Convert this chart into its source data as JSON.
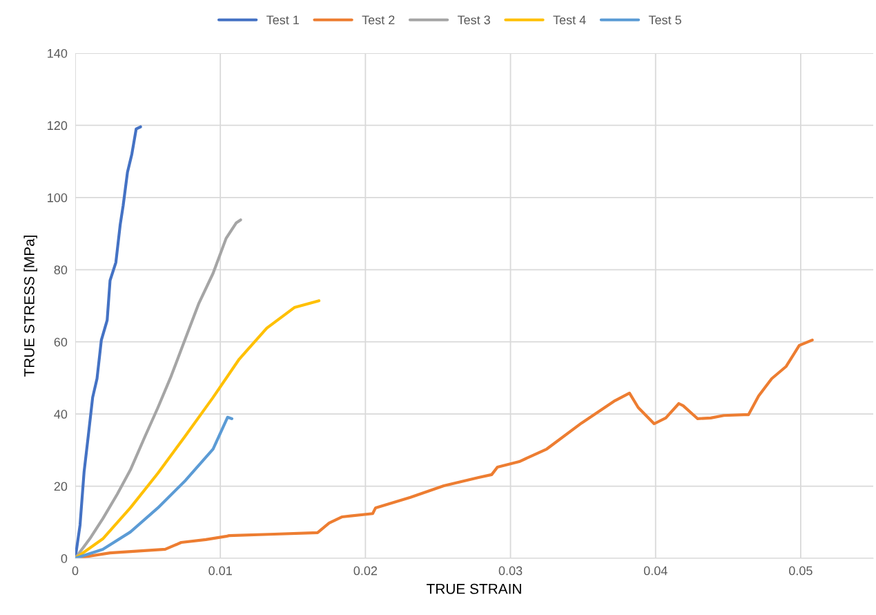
{
  "chart_data": {
    "type": "line",
    "xlabel": "TRUE STRAIN",
    "ylabel": "TRUE STRESS [MPa]",
    "xlim": [
      0,
      0.055
    ],
    "xticks": [
      0,
      0.01,
      0.02,
      0.03,
      0.04,
      0.05
    ],
    "ylim": [
      0,
      140
    ],
    "yticks": [
      0,
      20,
      40,
      60,
      80,
      100,
      120,
      140
    ],
    "grid": true,
    "legend": "top",
    "marker": "none",
    "line_style": "solid",
    "series": [
      {
        "name": "Test 1",
        "color": "#4472c4",
        "x": [
          0,
          0.00033,
          0.00061,
          0.0009,
          0.0012,
          0.0015,
          0.0018,
          0.0022,
          0.0024,
          0.0028,
          0.0031,
          0.0033,
          0.0036,
          0.0039,
          0.0042,
          0.0045
        ],
        "values": [
          0,
          9.2,
          24,
          34,
          44.6,
          49.8,
          60.5,
          66,
          77,
          82,
          92.5,
          97.7,
          107,
          112,
          119,
          119.6
        ]
      },
      {
        "name": "Test 2",
        "color": "#ed7d31",
        "x": [
          0,
          0.0024,
          0.0062,
          0.0073,
          0.009,
          0.0104,
          0.0106,
          0.0137,
          0.0167,
          0.0175,
          0.0184,
          0.0205,
          0.0207,
          0.0231,
          0.0254,
          0.0278,
          0.0287,
          0.0291,
          0.0306,
          0.0325,
          0.0349,
          0.0372,
          0.0382,
          0.0388,
          0.0399,
          0.0407,
          0.0416,
          0.0419,
          0.0429,
          0.0438,
          0.0447,
          0.0461,
          0.0464,
          0.0471,
          0.048,
          0.049,
          0.0499,
          0.0508
        ],
        "values": [
          0,
          1.5,
          2.5,
          4.4,
          5.2,
          6.1,
          6.3,
          6.7,
          7.1,
          9.8,
          11.5,
          12.4,
          14,
          16.9,
          20.1,
          22.4,
          23.2,
          25.3,
          26.8,
          30.3,
          37.5,
          43.7,
          45.8,
          41.8,
          37.3,
          38.9,
          42.9,
          42.3,
          38.7,
          38.9,
          39.6,
          39.8,
          39.8,
          45,
          49.8,
          53.2,
          59,
          60.5
        ]
      },
      {
        "name": "Test 3",
        "color": "#a5a5a5",
        "x": [
          0,
          0.001,
          0.0019,
          0.0029,
          0.0038,
          0.0048,
          0.0057,
          0.0066,
          0.0076,
          0.0085,
          0.0095,
          0.0104,
          0.0111,
          0.0114
        ],
        "values": [
          0,
          5.4,
          11,
          17.8,
          24.5,
          33.7,
          41.8,
          50.4,
          61,
          70.5,
          79,
          88.7,
          93,
          93.8
        ]
      },
      {
        "name": "Test 4",
        "color": "#ffc000",
        "x": [
          0,
          0.0019,
          0.0038,
          0.0057,
          0.0076,
          0.0095,
          0.0113,
          0.0132,
          0.0151,
          0.0168
        ],
        "values": [
          0,
          5.4,
          14,
          23.6,
          34,
          44.6,
          55.2,
          63.8,
          69.5,
          71.4
        ]
      },
      {
        "name": "Test 5",
        "color": "#5b9bd5",
        "x": [
          0,
          0.0019,
          0.0038,
          0.0057,
          0.0076,
          0.0095,
          0.0105,
          0.0108
        ],
        "values": [
          0,
          2.5,
          7.3,
          14,
          21.6,
          30.3,
          39.1,
          38.7
        ]
      }
    ]
  }
}
